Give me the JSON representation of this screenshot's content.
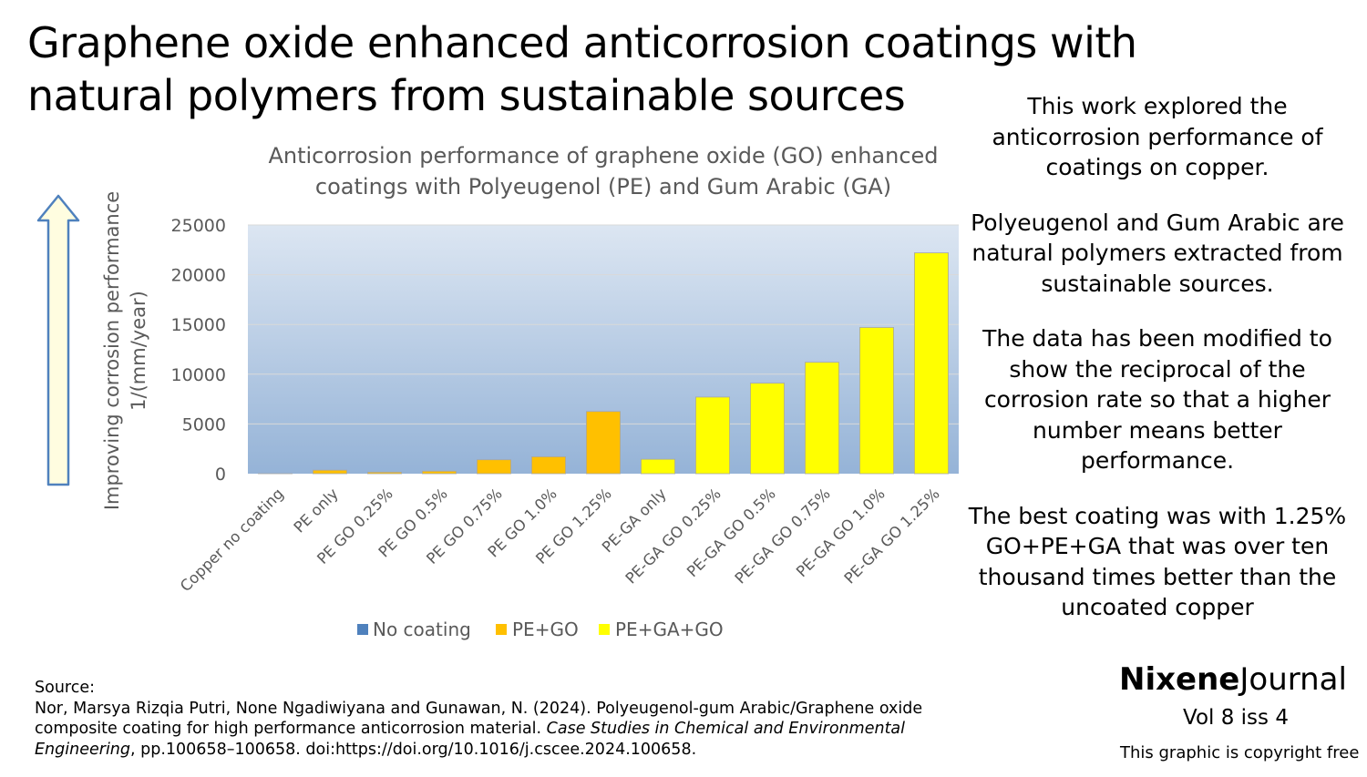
{
  "title_lines": [
    "Graphene oxide enhanced anticorrosion coatings with",
    "natural polymers from sustainable sources"
  ],
  "side_paragraphs": [
    "This work explored the anticorrosion performance of coatings on copper.",
    "Polyeugenol and Gum Arabic are natural polymers extracted from sustainable sources.",
    "The data has been modified to show the reciprocal of the corrosion rate so that a higher number means better performance.",
    "The best coating was with 1.25% GO+PE+GA that was over ten thousand times better than the uncoated copper"
  ],
  "source": {
    "label": "Source:",
    "text_before": "Nor, Marsya Rizqia Putri, None Ngadiwiyana and Gunawan, N. (2024). Polyeugenol-gum Arabic/Graphene oxide composite coating for high performance anticorrosion material. ",
    "journal": "Case Studies in Chemical and Environmental Engineering",
    "text_after": ", pp.100658–100658. doi:https://doi.org/10.1016/j.cscee.2024.100658."
  },
  "brand": {
    "bold": "Nixene",
    "regular": "Journal"
  },
  "volume": "Vol 8  iss 4",
  "copyright": "This graphic is copyright free",
  "colors": {
    "plot_top": "#dce6f2",
    "plot_bottom": "#95b3d7",
    "no_coating": "#4f81bd",
    "pe_go": "#ffc000",
    "pe_ga_go": "#ffff00",
    "arrow_fill": "#fffde0",
    "arrow_stroke": "#4f81bd"
  },
  "chart_data": {
    "type": "bar",
    "title_lines": [
      "Anticorrosion performance of graphene oxide (GO) enhanced",
      "coatings with Polyeugenol (PE) and Gum Arabic (GA)"
    ],
    "ylabel_lines": [
      "Improving corrosion performance",
      "1/(mm/year)"
    ],
    "ylim": [
      0,
      25000
    ],
    "yticks": [
      0,
      5000,
      10000,
      15000,
      20000,
      25000
    ],
    "categories": [
      "Copper no coating",
      "PE only",
      "PE GO 0.25%",
      "PE GO 0.5%",
      "PE GO 0.75%",
      "PE GO 1.0%",
      "PE GO 1.25%",
      "PE-GA only",
      "PE-GA GO 0.25%",
      "PE-GA GO 0.5%",
      "PE-GA GO 0.75%",
      "PE-GA GO 1.0%",
      "PE-GA GO 1.25%"
    ],
    "values": [
      2,
      350,
      150,
      250,
      1400,
      1700,
      6250,
      1450,
      7700,
      9100,
      11200,
      14700,
      22200
    ],
    "groups": [
      "No coating",
      "PE+GO",
      "PE+GO",
      "PE+GO",
      "PE+GO",
      "PE+GO",
      "PE+GO",
      "PE+GA+GO",
      "PE+GA+GO",
      "PE+GA+GO",
      "PE+GA+GO",
      "PE+GA+GO",
      "PE+GA+GO"
    ],
    "legend": [
      "No coating",
      "PE+GO",
      "PE+GA+GO"
    ]
  }
}
